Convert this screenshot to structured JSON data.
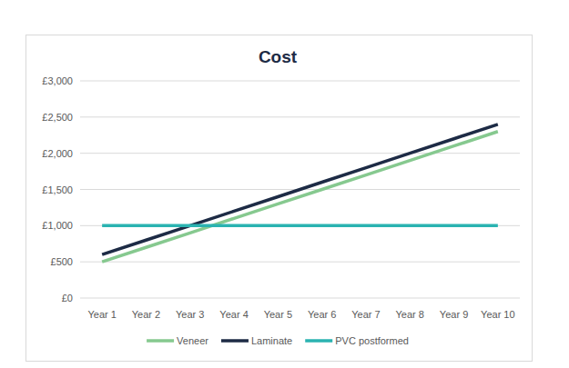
{
  "chart_data": {
    "type": "line",
    "title": "Cost",
    "categories": [
      "Year 1",
      "Year 2",
      "Year 3",
      "Year 4",
      "Year 5",
      "Year 6",
      "Year 7",
      "Year 8",
      "Year 9",
      "Year 10"
    ],
    "series": [
      {
        "name": "Veneer",
        "color": "#86c98f",
        "values": [
          500,
          700,
          900,
          1100,
          1300,
          1500,
          1700,
          1900,
          2100,
          2300
        ]
      },
      {
        "name": "Laminate",
        "color": "#1d2b45",
        "values": [
          600,
          800,
          1000,
          1200,
          1400,
          1600,
          1800,
          2000,
          2200,
          2400
        ]
      },
      {
        "name": "PVC postformed",
        "color": "#2bb3b1",
        "values": [
          1000,
          1000,
          1000,
          1000,
          1000,
          1000,
          1000,
          1000,
          1000,
          1000
        ]
      }
    ],
    "ylim": [
      0,
      3000
    ],
    "yticks": [
      {
        "value": 0,
        "label": "£0"
      },
      {
        "value": 500,
        "label": "£500"
      },
      {
        "value": 1000,
        "label": "£1,000"
      },
      {
        "value": 1500,
        "label": "£1,500"
      },
      {
        "value": 2000,
        "label": "£2,000"
      },
      {
        "value": 2500,
        "label": "£2,500"
      },
      {
        "value": 3000,
        "label": "£3,000"
      }
    ],
    "grid": true,
    "legend": "bottom"
  }
}
